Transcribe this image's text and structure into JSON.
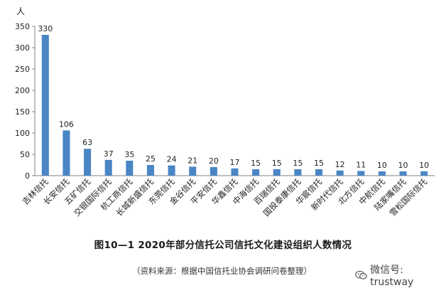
{
  "chart_data": {
    "type": "bar",
    "ylabel": "人",
    "ylim": [
      0,
      350
    ],
    "yticks": [
      0,
      50,
      100,
      150,
      200,
      250,
      300,
      350
    ],
    "categories": [
      "吉林信托",
      "长安信托",
      "五矿信托",
      "交银国际信托",
      "杭工商信托",
      "长城新盛信托",
      "东莞信托",
      "金谷信托",
      "平安信托",
      "华鑫信托",
      "中海信托",
      "百瑞信托",
      "国投泰康信托",
      "华宸信托",
      "新时代信托",
      "北方信托",
      "中航信托",
      "陆家嘴信托",
      "雪松国际信托"
    ],
    "values": [
      330,
      106,
      63,
      37,
      35,
      25,
      24,
      21,
      20,
      17,
      15,
      15,
      15,
      15,
      12,
      11,
      10,
      10,
      10
    ],
    "bar_color": "#4a86c5",
    "grid": false
  },
  "caption": {
    "title": "图10—1   2020年部分信托公司信托文化建设组织人数情况",
    "source": "（资料来源：根据中国信托业协会调研问卷整理）"
  },
  "watermark": {
    "icon": "wechat-icon",
    "text": "微信号: trustway"
  }
}
